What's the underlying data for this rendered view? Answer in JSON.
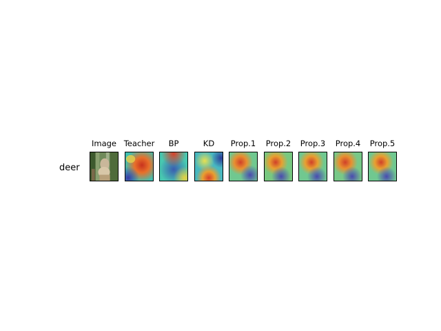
{
  "row_label": "deer",
  "panels": [
    {
      "title": "Image",
      "kind": "photo"
    },
    {
      "title": "Teacher",
      "kind": "heatmap"
    },
    {
      "title": "BP",
      "kind": "heatmap"
    },
    {
      "title": "KD",
      "kind": "heatmap"
    },
    {
      "title": "Prop.1",
      "kind": "heatmap"
    },
    {
      "title": "Prop.2",
      "kind": "heatmap"
    },
    {
      "title": "Prop.3",
      "kind": "heatmap"
    },
    {
      "title": "Prop.4",
      "kind": "heatmap"
    },
    {
      "title": "Prop.5",
      "kind": "heatmap"
    }
  ]
}
